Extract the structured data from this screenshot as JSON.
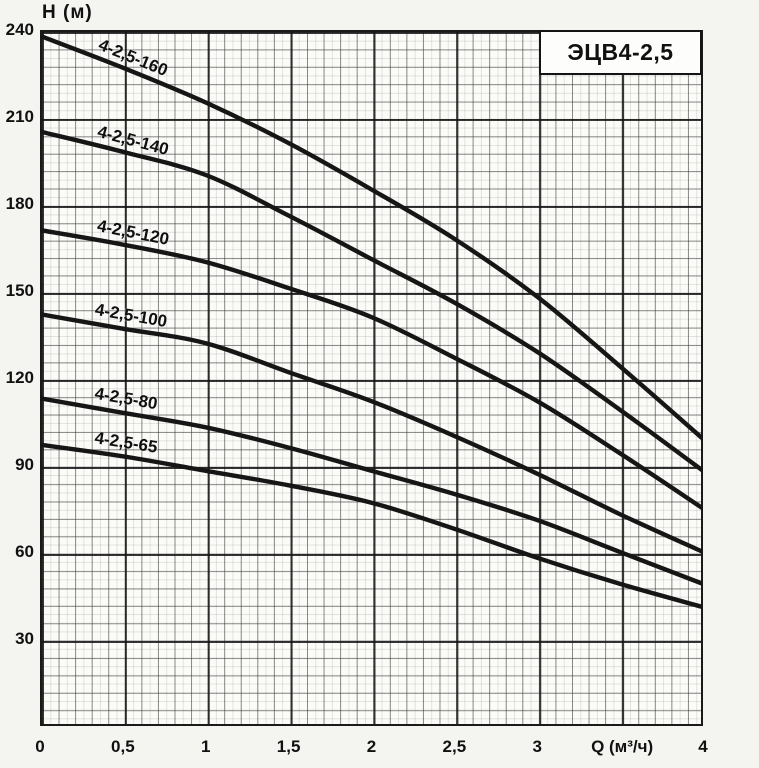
{
  "chart_data": {
    "type": "line",
    "title": "ЭЦВ4-2,5",
    "xlabel": "Q (м³/ч)",
    "ylabel": "H (м)",
    "xlim": [
      0,
      4
    ],
    "ylim": [
      0,
      240
    ],
    "grid": {
      "on": true,
      "major_x_step": 0.5,
      "major_y_step": 30,
      "minor_per_major": 5
    },
    "legend_position": "labels-on-curves",
    "x": [
      0,
      0.5,
      1,
      1.5,
      2,
      2.5,
      3,
      3.5,
      4
    ],
    "x_ticks": [
      {
        "v": 0,
        "label": "0"
      },
      {
        "v": 0.5,
        "label": "0,5"
      },
      {
        "v": 1,
        "label": "1"
      },
      {
        "v": 1.5,
        "label": "1,5"
      },
      {
        "v": 2,
        "label": "2"
      },
      {
        "v": 2.5,
        "label": "2,5"
      },
      {
        "v": 3,
        "label": "3"
      },
      {
        "v": 4,
        "label": "4"
      }
    ],
    "x_axis_title_at": 3.5,
    "y_ticks": [
      {
        "v": 240,
        "label": "240"
      },
      {
        "v": 210,
        "label": "210"
      },
      {
        "v": 180,
        "label": "180"
      },
      {
        "v": 150,
        "label": "150"
      },
      {
        "v": 120,
        "label": "120"
      },
      {
        "v": 90,
        "label": "90"
      },
      {
        "v": 60,
        "label": "60"
      },
      {
        "v": 30,
        "label": "30"
      }
    ],
    "series": [
      {
        "name": "4-2,5-160",
        "label_q": 0.56,
        "values": [
          238,
          227,
          215,
          201,
          185,
          168,
          148,
          124,
          99
        ]
      },
      {
        "name": "4-2,5-140",
        "label_q": 0.56,
        "values": [
          205,
          198,
          190,
          176,
          161,
          146,
          129,
          109,
          88
        ]
      },
      {
        "name": "4-2,5-120",
        "label_q": 0.56,
        "values": [
          171,
          166,
          160,
          151,
          141,
          127,
          112,
          94,
          75
        ]
      },
      {
        "name": "4-2,5-100",
        "label_q": 0.55,
        "values": [
          142,
          137,
          132,
          122,
          112,
          100,
          87,
          73,
          60
        ]
      },
      {
        "name": "4-2,5-80",
        "label_q": 0.52,
        "values": [
          113,
          108,
          103,
          96,
          88,
          80,
          71,
          60,
          49
        ]
      },
      {
        "name": "4-2,5-65",
        "label_q": 0.52,
        "values": [
          97,
          93,
          88,
          83,
          77,
          68,
          58,
          49,
          41
        ]
      }
    ],
    "colors": {
      "curve": "#161616",
      "grid_major": "#222222",
      "grid_minor": "#8f8f8f",
      "plot_background": "#fbfbf8",
      "page_background": "#f4f4f1",
      "text": "#111111"
    }
  }
}
